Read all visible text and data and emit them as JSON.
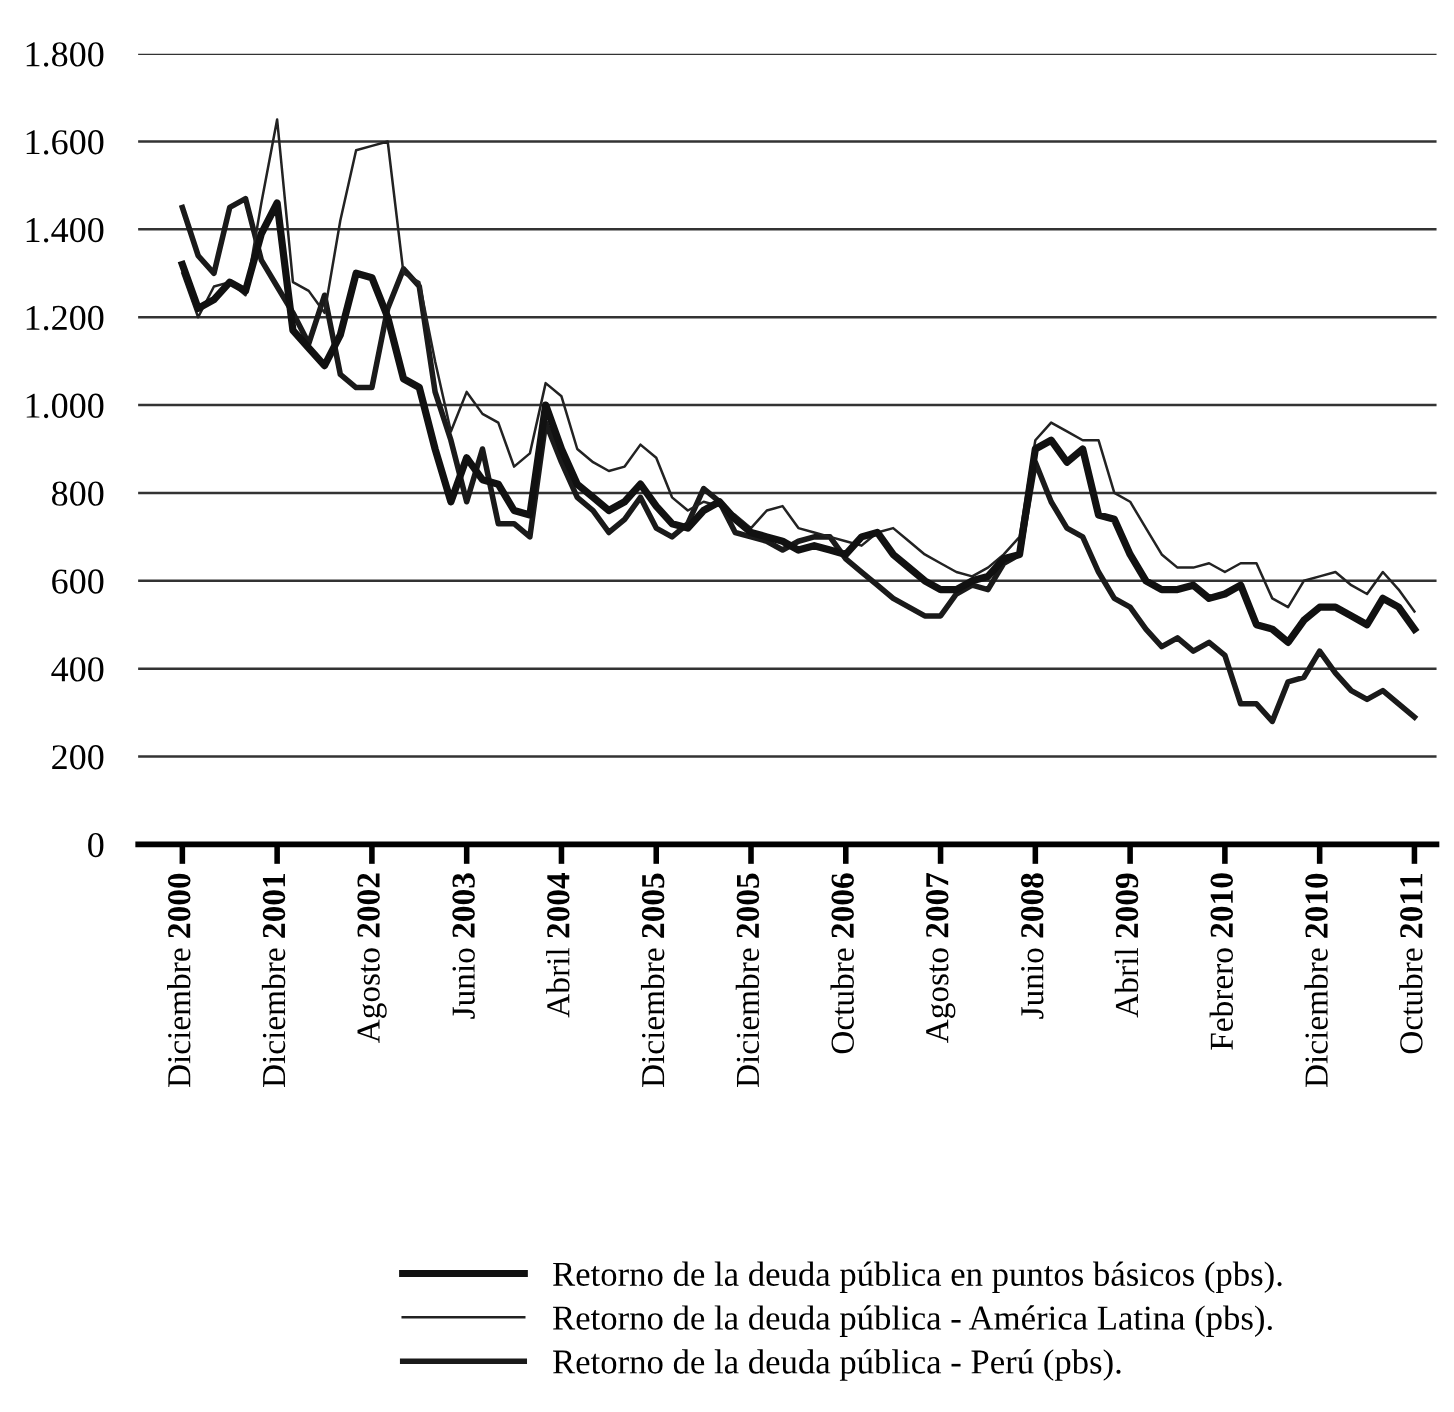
{
  "chart_data": {
    "type": "line",
    "categories": [
      "Diciembre 2000",
      null,
      null,
      null,
      null,
      null,
      "Diciembre 2001",
      null,
      null,
      null,
      null,
      null,
      "Agosto 2002",
      null,
      null,
      null,
      null,
      null,
      "Junio 2003",
      null,
      null,
      null,
      null,
      null,
      "Abril 2004",
      null,
      null,
      null,
      null,
      null,
      "Diciembre 2005",
      null,
      null,
      null,
      null,
      null,
      "Diciembre 2005",
      null,
      null,
      null,
      null,
      null,
      "Octubre 2006",
      null,
      null,
      null,
      null,
      null,
      "Agosto 2007",
      null,
      null,
      null,
      null,
      null,
      "Junio 2008",
      null,
      null,
      null,
      null,
      null,
      "Abril 2009",
      null,
      null,
      null,
      null,
      null,
      "Febrero 2010",
      null,
      null,
      null,
      null,
      null,
      "Diciembre 2010",
      null,
      null,
      null,
      null,
      null,
      "Octubre 2011"
    ],
    "series": [
      {
        "name": "Retorno de la deuda pública en puntos básicos (pbs).",
        "color": "#111111",
        "values": [
          1320,
          1220,
          1240,
          1280,
          1260,
          1390,
          1460,
          1170,
          1130,
          1090,
          1160,
          1300,
          1290,
          1200,
          1060,
          1040,
          900,
          780,
          880,
          830,
          820,
          760,
          750,
          1000,
          900,
          820,
          790,
          760,
          780,
          820,
          770,
          730,
          720,
          760,
          780,
          740,
          710,
          700,
          690,
          670,
          680,
          670,
          660,
          700,
          710,
          660,
          630,
          600,
          580,
          580,
          600,
          610,
          650,
          660,
          900,
          920,
          870,
          900,
          750,
          740,
          660,
          600,
          580,
          580,
          590,
          560,
          570,
          590,
          500,
          490,
          460,
          510,
          540,
          540,
          520,
          500,
          560,
          540,
          490
        ]
      },
      {
        "name": "Retorno de la deuda pública - América Latina (pbs).",
        "color": "#222222",
        "values": [
          1300,
          1200,
          1270,
          1280,
          1250,
          1460,
          1650,
          1280,
          1260,
          1210,
          1420,
          1580,
          1590,
          1600,
          1300,
          1280,
          1100,
          940,
          1030,
          980,
          960,
          860,
          890,
          1050,
          1020,
          900,
          870,
          850,
          860,
          910,
          880,
          790,
          760,
          780,
          770,
          750,
          720,
          760,
          770,
          720,
          710,
          700,
          690,
          680,
          710,
          720,
          690,
          660,
          640,
          620,
          610,
          630,
          660,
          700,
          920,
          960,
          940,
          920,
          920,
          800,
          780,
          720,
          660,
          630,
          630,
          640,
          620,
          640,
          640,
          560,
          540,
          600,
          610,
          620,
          590,
          570,
          620,
          580,
          530
        ]
      },
      {
        "name": "Retorno de la deuda pública - Perú (pbs).",
        "color": "#1a1a1a",
        "values": [
          1450,
          1340,
          1300,
          1450,
          1470,
          1330,
          1270,
          1210,
          1140,
          1250,
          1070,
          1040,
          1040,
          1220,
          1310,
          1270,
          1030,
          920,
          780,
          900,
          730,
          730,
          700,
          960,
          870,
          790,
          760,
          710,
          740,
          790,
          720,
          700,
          730,
          810,
          780,
          710,
          700,
          690,
          670,
          690,
          700,
          700,
          650,
          620,
          590,
          560,
          540,
          520,
          520,
          570,
          590,
          580,
          640,
          660,
          870,
          780,
          720,
          700,
          620,
          560,
          540,
          490,
          450,
          470,
          440,
          460,
          430,
          320,
          320,
          280,
          370,
          380,
          440,
          390,
          350,
          330,
          350,
          320,
          290
        ]
      }
    ],
    "ylim": [
      0,
      1800
    ],
    "yticks": [
      0,
      {
        "value": 200,
        "label": "200"
      },
      {
        "value": 400,
        "label": "400"
      },
      {
        "value": 600,
        "label": "600"
      },
      {
        "value": 800,
        "label": "800"
      },
      {
        "value": 1000,
        "label": "1.000"
      },
      {
        "value": 1200,
        "label": "1.200"
      },
      {
        "value": 1400,
        "label": "1.400"
      },
      {
        "value": 1600,
        "label": "1.600"
      },
      {
        "value": 1800,
        "label": "1.800"
      }
    ],
    "grid": "y",
    "legend": "bottom",
    "marker": "none",
    "line_style": "solid"
  }
}
